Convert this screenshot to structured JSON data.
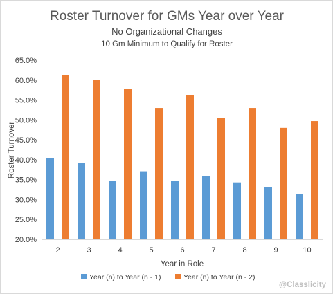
{
  "chart_data": {
    "type": "bar",
    "title": "Roster Turnover for GMs Year over Year",
    "subtitle": "No Organizational Changes",
    "subtitle2": "10 Gm Minimum to Qualify for Roster",
    "xlabel": "Year in Role",
    "ylabel": "Roster Turnover",
    "categories": [
      "2",
      "3",
      "4",
      "5",
      "6",
      "7",
      "8",
      "9",
      "10"
    ],
    "series": [
      {
        "name": "Year (n) to Year (n - 1)",
        "color": "#5b9bd5",
        "values": [
          40.5,
          39.2,
          34.7,
          37.1,
          34.7,
          35.9,
          34.3,
          33.1,
          31.3
        ]
      },
      {
        "name": "Year (n) to Year (n - 2)",
        "color": "#ed7d31",
        "values": [
          61.3,
          60.0,
          57.8,
          53.0,
          56.3,
          50.5,
          53.0,
          48.0,
          49.7
        ]
      }
    ],
    "ylim": [
      20,
      65
    ],
    "ytick_step": 5,
    "ytick_labels": [
      "20.0%",
      "25.0%",
      "30.0%",
      "35.0%",
      "40.0%",
      "45.0%",
      "50.0%",
      "55.0%",
      "60.0%",
      "65.0%"
    ],
    "grid": false,
    "legend_position": "bottom"
  },
  "watermark": "@Classlicity"
}
